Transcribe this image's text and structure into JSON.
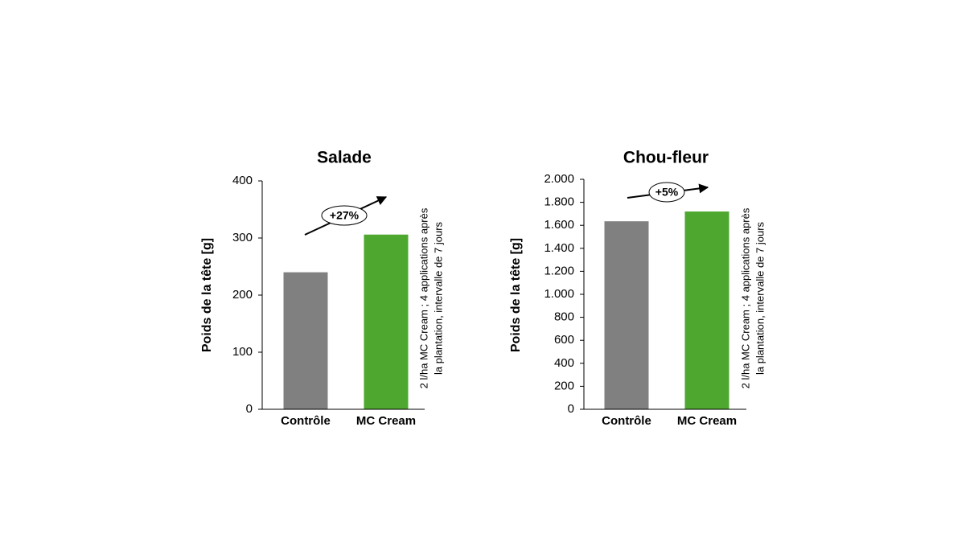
{
  "chart_data": [
    {
      "type": "bar",
      "title": "Salade",
      "y_label": "Poids de la tête [g]",
      "categories": [
        "Contrôle",
        "MC Cream"
      ],
      "values": [
        240,
        306
      ],
      "colors": [
        "#808080",
        "#4ea72e"
      ],
      "ylim": [
        0,
        400
      ],
      "yticks": [
        0,
        100,
        200,
        300,
        400
      ],
      "annotation": "+27%",
      "note": [
        "2 l/ha MC Cream ; 4 applications après",
        "la plantation, intervalle de 7 jours"
      ]
    },
    {
      "type": "bar",
      "title": "Chou-fleur",
      "y_label": "Poids de la tête [g]",
      "categories": [
        "Contrôle",
        "MC Cream"
      ],
      "values": [
        1635,
        1720
      ],
      "colors": [
        "#808080",
        "#4ea72e"
      ],
      "ylim": [
        0,
        2000
      ],
      "yticks": [
        0,
        200,
        400,
        600,
        800,
        {
          "value": 1000,
          "label": "1.000"
        },
        {
          "value": 1200,
          "label": "1.200"
        },
        {
          "value": 1400,
          "label": "1.400"
        },
        {
          "value": 1600,
          "label": "1.600"
        },
        {
          "value": 1800,
          "label": "1.800"
        },
        {
          "value": 2000,
          "label": "2.000"
        }
      ],
      "annotation": "+5%",
      "note": [
        "2 l/ha MC Cream ; 4 applications après",
        "la plantation, intervalle de 7 jours"
      ]
    }
  ]
}
